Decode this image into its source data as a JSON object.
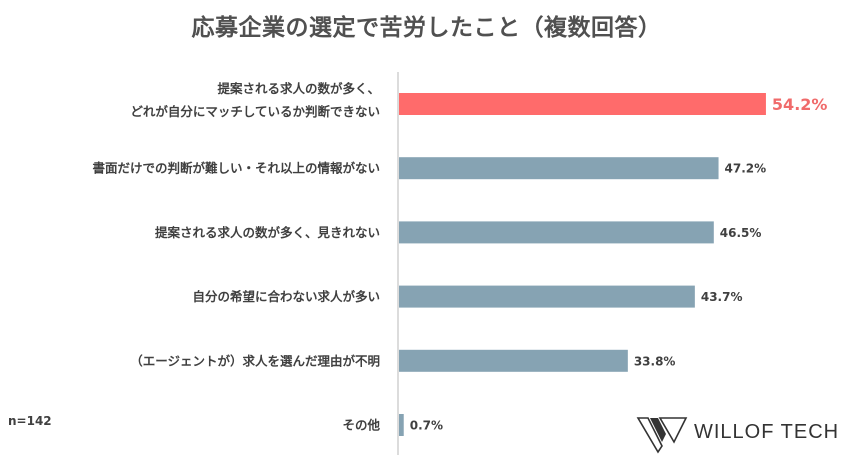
{
  "chart_data": {
    "type": "bar",
    "orientation": "horizontal",
    "title": "応募企業の選定で苦労したこと（複数回答）",
    "categories": [
      [
        "提案される求人の数が多く、",
        "どれが自分にマッチしているか判断できない"
      ],
      [
        "書面だけでの判断が難しい・それ以上の情報がない"
      ],
      [
        "提案される求人の数が多く、見きれない"
      ],
      [
        "自分の希望に合わない求人が多い"
      ],
      [
        "（エージェントが）求人を選んだ理由が不明"
      ],
      [
        "その他"
      ]
    ],
    "values": [
      54.2,
      47.2,
      46.5,
      43.7,
      33.8,
      0.7
    ],
    "value_labels": [
      "54.2%",
      "47.2%",
      "46.5%",
      "43.7%",
      "33.8%",
      "0.7%"
    ],
    "highlight_index": 0,
    "colors": {
      "bar": "#86a3b3",
      "highlight": "#ff6b6b",
      "axis": "#d0d0d0"
    },
    "xlim": [
      0,
      100
    ],
    "grid": false,
    "note": "n=142"
  },
  "brand": {
    "logo_text": "WILLOF TECH",
    "logo_icon": "willof-logo-icon"
  }
}
